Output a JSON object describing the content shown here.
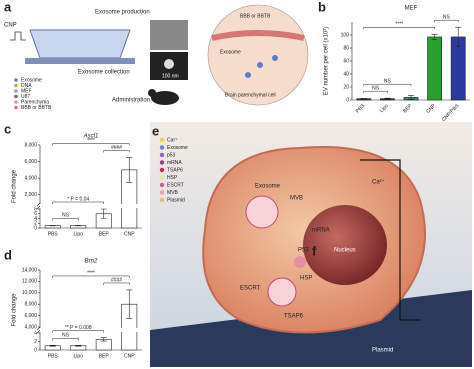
{
  "chart_data": [
    {
      "type": "bar",
      "panel_label": "b",
      "title": "MEF",
      "y_label": "EV number per cell (x10³)",
      "categories": [
        "PBS",
        "Lipo",
        "BEP",
        "CNP",
        "CNP/PBS"
      ],
      "values": [
        2,
        2,
        4,
        97,
        97
      ],
      "errors": [
        0.5,
        0.8,
        3,
        4,
        15
      ],
      "colors": [
        "#333333",
        "#333333",
        "#2a8a8a",
        "#2ca02c",
        "#2b3a9e"
      ],
      "ylim": [
        0,
        120
      ],
      "yticks": [
        0,
        20,
        40,
        60,
        80,
        100
      ],
      "annotations": [
        {
          "text": "NS",
          "between": [
            0,
            1
          ]
        },
        {
          "text": "NS",
          "between": [
            0,
            2
          ]
        },
        {
          "text": "****",
          "between": [
            0,
            3
          ]
        },
        {
          "text": "NS",
          "between": [
            3,
            4
          ]
        }
      ]
    },
    {
      "type": "bar",
      "panel_label": "c",
      "title": "Ascl1",
      "y_label": "Fold change",
      "categories": [
        "PBS",
        "Lipo",
        "BEP",
        "CNP"
      ],
      "values": [
        1,
        1,
        6,
        5000
      ],
      "errors": [
        0.1,
        0.1,
        2,
        1500
      ],
      "color": "#ffffff",
      "broken_axis": {
        "lower": {
          "ylim": [
            0,
            8
          ],
          "yticks": [
            0,
            2,
            4,
            6,
            8
          ]
        },
        "upper": {
          "ylim": [
            1000,
            8000
          ],
          "yticks": [
            {
              "value": 2000,
              "label": "2,000"
            },
            {
              "value": 4000,
              "label": "4,000"
            },
            {
              "value": 6000,
              "label": "6,000"
            },
            {
              "value": 8000,
              "label": "8,000"
            }
          ]
        }
      },
      "annotations": [
        {
          "text": "NS",
          "between": [
            0,
            1
          ]
        },
        {
          "text": "* P = 0.04",
          "between": [
            0,
            2
          ]
        },
        {
          "text": "####",
          "between": [
            2,
            3
          ]
        },
        {
          "text": "****",
          "between": [
            0,
            3
          ]
        }
      ]
    },
    {
      "type": "bar",
      "panel_label": "d",
      "title": "Brn2",
      "y_label": "Fold change",
      "categories": [
        "PBS",
        "Lipo",
        "BEP",
        "CNP"
      ],
      "values": [
        1,
        1,
        2.5,
        8000
      ],
      "errors": [
        0.1,
        0.1,
        0.4,
        2500
      ],
      "color": "#ffffff",
      "broken_axis": {
        "lower": {
          "ylim": [
            0,
            4
          ],
          "yticks": [
            0,
            2,
            4
          ]
        },
        "upper": {
          "ylim": [
            4000,
            14000
          ],
          "yticks": [
            {
              "value": 4000,
              "label": "4,000"
            },
            {
              "value": 6000,
              "label": "6,000"
            },
            {
              "value": 8000,
              "label": "8,000"
            },
            {
              "value": 10000,
              "label": "10,000"
            },
            {
              "value": 12000,
              "label": "12,000"
            },
            {
              "value": 14000,
              "label": "14,000"
            }
          ]
        }
      },
      "annotations": [
        {
          "text": "NS",
          "between": [
            0,
            1
          ]
        },
        {
          "text": "** P = 0.008",
          "between": [
            0,
            2
          ]
        },
        {
          "text": "####",
          "between": [
            2,
            3
          ]
        },
        {
          "text": "****",
          "between": [
            0,
            3
          ]
        }
      ]
    }
  ],
  "figure": {
    "panel_a": {
      "label": "a",
      "cnp": "CNP",
      "production": "Exosome production",
      "collection": "Exosome collection",
      "administration": "Administration",
      "scale": "100 nm",
      "legend": [
        "Exosome",
        "DNA",
        "MEF",
        "U87",
        "Parenchyma",
        "BBB or BBTB"
      ],
      "inset": [
        "BBB or BBTB",
        "Exosome",
        "Brain parenchymal cell"
      ]
    },
    "panel_e": {
      "label": "e",
      "legend": [
        "Ca²⁺",
        "Exosome",
        "p53",
        "mRNA",
        "TSAP6",
        "HSP",
        "ESCRT",
        "MVB",
        "Plasmid"
      ],
      "exosome": "Exosome",
      "mvb": "MVB",
      "ca": "Ca²⁺",
      "mrna": "mRNA",
      "nucleus": "Nucleus",
      "p53": "P53",
      "escrt": "ESCRT",
      "hsp": "HSP",
      "tsap6": "TSAP6",
      "plasmid": "Plasmid",
      "f": "f"
    }
  }
}
